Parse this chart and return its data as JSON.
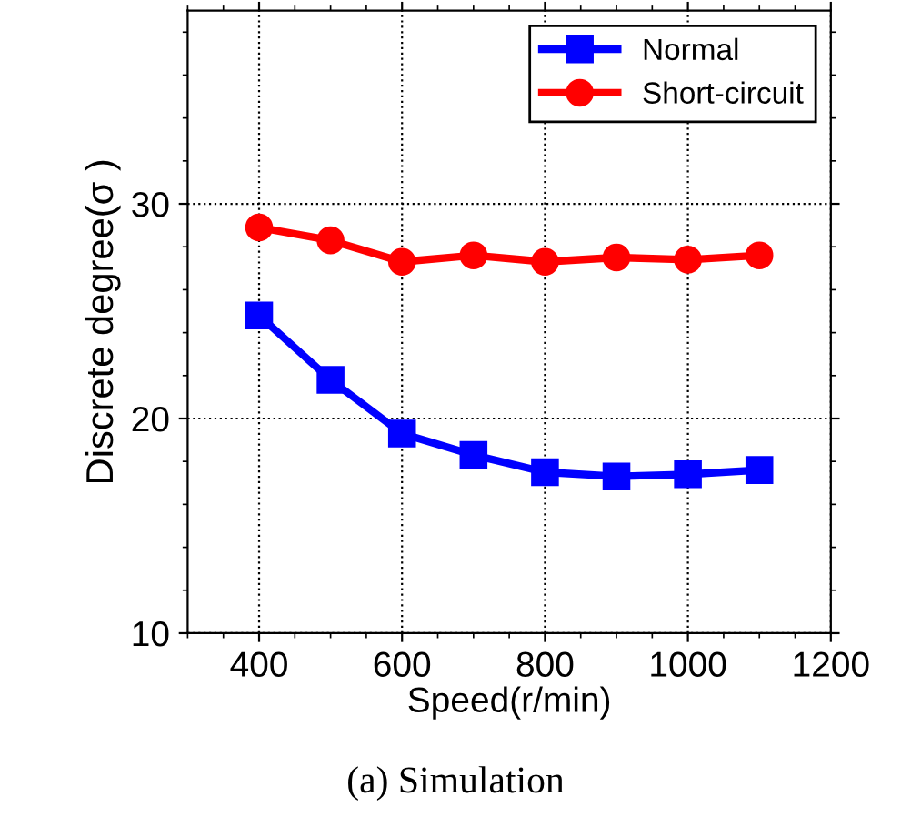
{
  "chart_data": {
    "type": "line",
    "xlabel": "Speed(r/min)",
    "ylabel": "Discrete degree(σ )",
    "annotations": [
      "(a) Simulation"
    ],
    "x": [
      400,
      500,
      600,
      700,
      800,
      900,
      1000,
      1100
    ],
    "series": [
      {
        "name": "Normal",
        "color": "#0000ff",
        "marker": "square",
        "values": [
          24.8,
          21.8,
          19.3,
          18.3,
          17.5,
          17.3,
          17.4,
          17.6
        ]
      },
      {
        "name": "Short-circuit",
        "color": "#ff0000",
        "marker": "circle",
        "values": [
          28.9,
          28.3,
          27.3,
          27.6,
          27.3,
          27.5,
          27.4,
          27.6
        ]
      }
    ],
    "xlim": [
      300,
      1200
    ],
    "xticks": [
      400,
      600,
      800,
      1000,
      1200
    ],
    "ylim": [
      10,
      39
    ],
    "yticks": [
      10,
      20,
      30
    ],
    "grid": true,
    "legend": "top right",
    "line_style": "solid"
  }
}
